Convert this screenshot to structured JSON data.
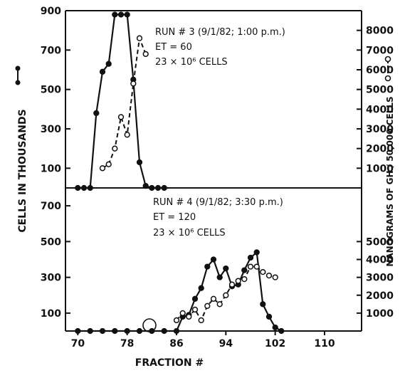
{
  "chart_data": [
    {
      "type": "line",
      "panel": "top",
      "annotation": [
        "RUN # 3 (9/1/82; 1:00 p.m.)",
        "ET = 60",
        "23 × 10⁶ CELLS"
      ],
      "ylabel_left": "CELLS IN THOUSANDS",
      "ylabel_right": "NANOGRAMS OF GH / 50,000 CELLS",
      "ylim_left": [
        0,
        900
      ],
      "ylim_right": [
        0,
        9000
      ],
      "left_ticks": [
        "100",
        "300",
        "500",
        "700",
        "900"
      ],
      "right_ticks": [
        "1000",
        "2000",
        "3000",
        "4000",
        "5000",
        "6000",
        "7000",
        "8000"
      ],
      "series": [
        {
          "axis": "left",
          "style": "solid-filled",
          "x": [
            70,
            71,
            72,
            73,
            74,
            75,
            76,
            77,
            78,
            79,
            80,
            81,
            82,
            83,
            84
          ],
          "y": [
            0,
            0,
            0,
            380,
            590,
            630,
            880,
            880,
            880,
            550,
            130,
            10,
            0,
            0,
            0
          ]
        },
        {
          "axis": "right",
          "style": "dashed-open",
          "x": [
            74,
            75,
            76,
            77,
            78,
            79,
            80,
            81
          ],
          "y": [
            1000,
            1200,
            2000,
            3600,
            2700,
            5300,
            7600,
            6800
          ]
        }
      ]
    },
    {
      "type": "line",
      "panel": "bottom",
      "annotation": [
        "RUN # 4 (9/1/82; 3:30 p.m.)",
        "ET = 120",
        "23 × 10⁶ CELLS"
      ],
      "xlabel": "FRACTION #",
      "xticks": [
        "70",
        "78",
        "86",
        "94",
        "102",
        "110"
      ],
      "ylim_left": [
        0,
        800
      ],
      "ylim_right": [
        0,
        8000
      ],
      "left_ticks": [
        "100",
        "300",
        "500",
        "700"
      ],
      "right_ticks": [
        "1000",
        "2000",
        "3000",
        "4000",
        "5000"
      ],
      "series": [
        {
          "axis": "left",
          "style": "solid-filled",
          "x": [
            70,
            72,
            74,
            76,
            78,
            80,
            82,
            84,
            86,
            87,
            88,
            89,
            90,
            91,
            92,
            93,
            94,
            95,
            96,
            97,
            98,
            99,
            100,
            101,
            102,
            103
          ],
          "y": [
            0,
            0,
            0,
            0,
            0,
            0,
            0,
            0,
            0,
            80,
            90,
            180,
            240,
            360,
            400,
            300,
            350,
            250,
            260,
            340,
            410,
            440,
            150,
            80,
            20,
            0
          ]
        },
        {
          "axis": "right",
          "style": "dashed-open",
          "x": [
            86,
            87,
            88,
            89,
            90,
            91,
            92,
            93,
            94,
            95,
            96,
            97,
            98,
            99,
            100,
            101,
            102
          ],
          "y": [
            600,
            1000,
            800,
            1200,
            600,
            1400,
            1800,
            1500,
            2000,
            2600,
            2800,
            2900,
            3600,
            3600,
            3300,
            3100,
            3000
          ]
        }
      ]
    }
  ]
}
